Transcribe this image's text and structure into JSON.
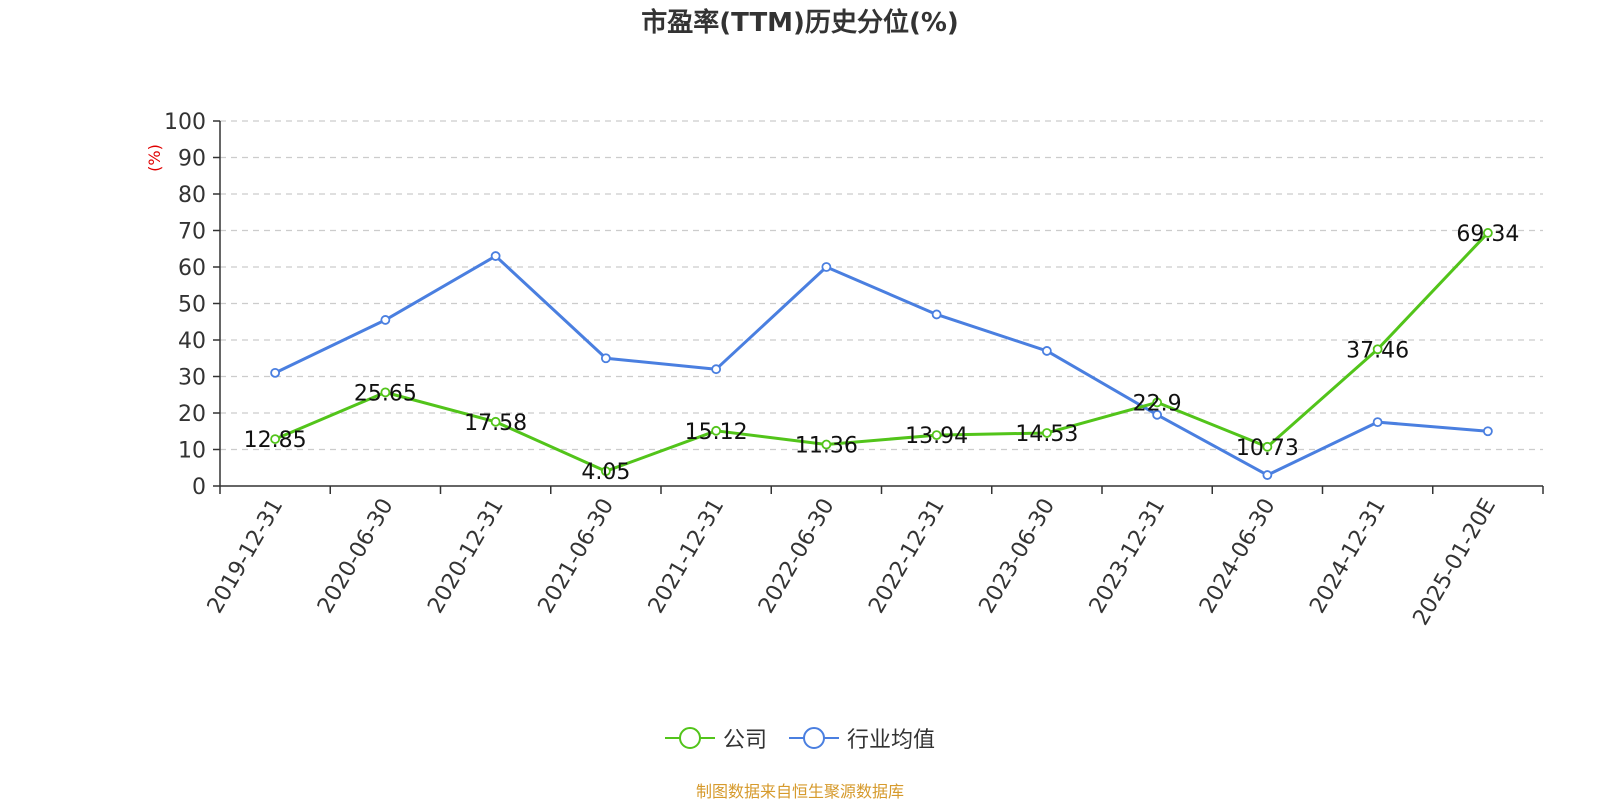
{
  "title": "市盈率(TTM)历史分位(%)",
  "source_note": "制图数据来自恒生聚源数据库",
  "chart_data": {
    "type": "line",
    "title": "市盈率(TTM)历史分位(%)",
    "ylabel": "(%)",
    "xlabel": "",
    "ylim": [
      0,
      100
    ],
    "yticks": [
      0,
      10,
      20,
      30,
      40,
      50,
      60,
      70,
      80,
      90,
      100
    ],
    "grid": true,
    "legend_position": "bottom-center",
    "categories": [
      "2019-12-31",
      "2020-06-30",
      "2020-12-31",
      "2021-06-30",
      "2021-12-31",
      "2022-06-30",
      "2022-12-31",
      "2023-06-30",
      "2023-12-31",
      "2024-06-30",
      "2024-12-31",
      "2025-01-20E"
    ],
    "series": [
      {
        "name": "公司",
        "color": "#52c41a",
        "show_labels": true,
        "values": [
          12.85,
          25.65,
          17.58,
          4.05,
          15.12,
          11.36,
          13.94,
          14.53,
          22.9,
          10.73,
          37.46,
          69.34
        ]
      },
      {
        "name": "行业均值",
        "color": "#4a7fe0",
        "show_labels": false,
        "values": [
          31,
          45.5,
          63,
          35,
          32,
          60,
          47,
          37,
          19.5,
          3,
          17.5,
          15
        ]
      }
    ]
  },
  "colors": {
    "axis": "#333333",
    "grid": "#cccccc",
    "ylabel": "#e00000",
    "source": "#d69a2c"
  }
}
